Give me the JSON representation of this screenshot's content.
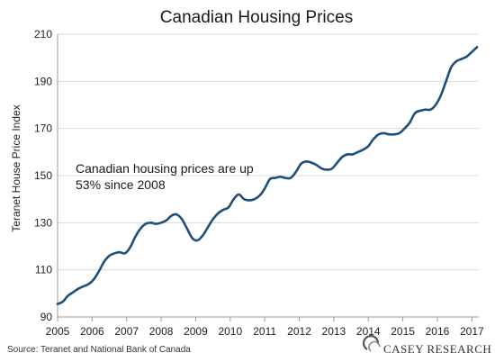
{
  "chart_data": {
    "type": "line",
    "title": "Canadian Housing Prices",
    "xlabel": "",
    "ylabel": "Teranet House Price Index",
    "xlim": [
      2005,
      2017.2
    ],
    "ylim": [
      90,
      210
    ],
    "x_ticks": [
      "2005",
      "2006",
      "2007",
      "2008",
      "2009",
      "2010",
      "2011",
      "2012",
      "2013",
      "2014",
      "2015",
      "2016",
      "2017"
    ],
    "y_ticks": [
      "90",
      "110",
      "130",
      "150",
      "170",
      "190",
      "210"
    ],
    "grid": true,
    "series": [
      {
        "color": "#1f4e79",
        "x": [
          2005.0,
          2005.15,
          2005.3,
          2005.45,
          2005.6,
          2005.75,
          2005.9,
          2006.05,
          2006.2,
          2006.35,
          2006.5,
          2006.65,
          2006.8,
          2006.95,
          2007.1,
          2007.25,
          2007.4,
          2007.55,
          2007.7,
          2007.85,
          2008.0,
          2008.15,
          2008.3,
          2008.45,
          2008.6,
          2008.75,
          2008.9,
          2009.05,
          2009.2,
          2009.35,
          2009.5,
          2009.65,
          2009.8,
          2009.95,
          2010.1,
          2010.25,
          2010.4,
          2010.55,
          2010.7,
          2010.85,
          2011.0,
          2011.15,
          2011.3,
          2011.45,
          2011.6,
          2011.75,
          2011.9,
          2012.05,
          2012.2,
          2012.35,
          2012.5,
          2012.65,
          2012.8,
          2012.95,
          2013.1,
          2013.25,
          2013.4,
          2013.55,
          2013.7,
          2013.85,
          2014.0,
          2014.15,
          2014.3,
          2014.45,
          2014.6,
          2014.75,
          2014.9,
          2015.05,
          2015.2,
          2015.35,
          2015.5,
          2015.65,
          2015.8,
          2015.95,
          2016.1,
          2016.25,
          2016.4,
          2016.55,
          2016.7,
          2016.85,
          2017.0,
          2017.15
        ],
        "y": [
          95.5,
          96.5,
          99.0,
          100.5,
          102.0,
          103.0,
          104.0,
          106.0,
          109.5,
          113.5,
          116.0,
          117.0,
          117.5,
          117.0,
          119.5,
          124.0,
          127.5,
          129.5,
          130.0,
          129.5,
          130.0,
          131.0,
          133.0,
          133.5,
          131.5,
          127.5,
          123.5,
          122.5,
          124.5,
          128.0,
          131.5,
          134.0,
          135.5,
          136.5,
          140.0,
          142.0,
          140.0,
          139.5,
          140.0,
          141.5,
          144.5,
          148.5,
          149.0,
          149.5,
          149.0,
          149.0,
          151.5,
          155.0,
          156.0,
          155.5,
          154.5,
          153.0,
          152.5,
          153.0,
          155.5,
          158.0,
          159.0,
          159.0,
          160.0,
          161.0,
          162.5,
          165.5,
          167.5,
          168.0,
          167.5,
          167.5,
          168.0,
          170.0,
          172.5,
          176.5,
          177.5,
          178.0,
          178.0,
          180.0,
          184.0,
          190.0,
          196.0,
          198.5,
          199.5,
          200.5,
          202.5,
          204.5
        ]
      }
    ],
    "annotation": {
      "line1": "Canadian housing prices are up",
      "line2": "53% since 2008"
    }
  },
  "source_text": "Source: Teranet and National Bank of Canada",
  "logo_text": "CASEY RESEARCH",
  "colors": {
    "line": "#1f4e79",
    "grid": "#d9d9d9",
    "axis": "#999999"
  }
}
